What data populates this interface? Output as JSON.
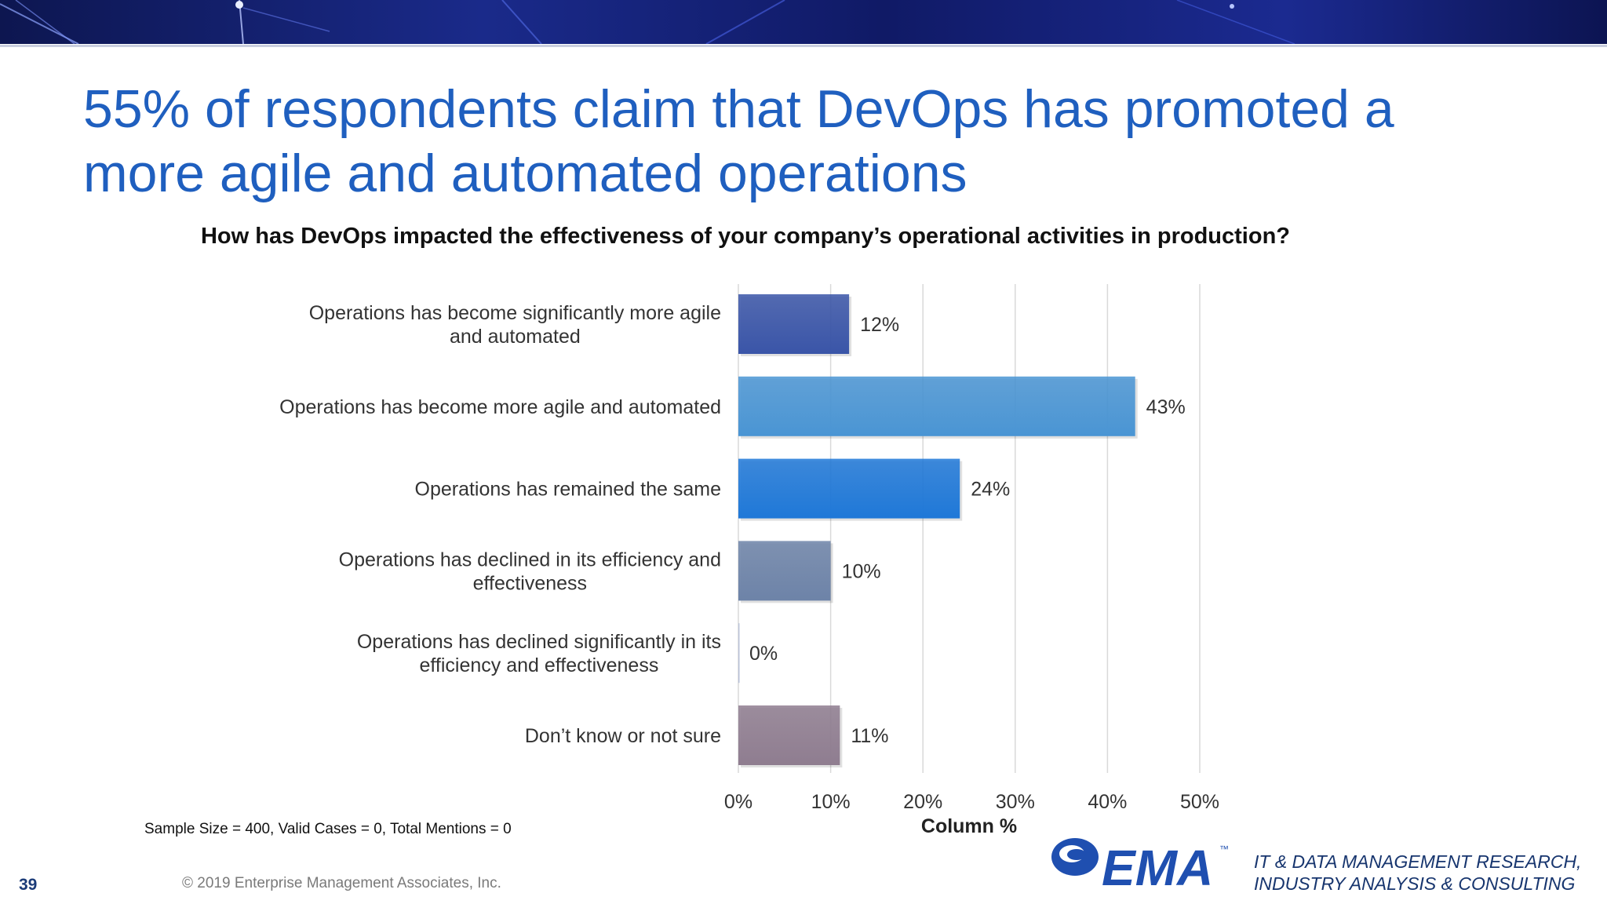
{
  "slide": {
    "title": "55% of respondents claim that DevOps has promoted a more agile and automated operations",
    "question": "How has DevOps impacted the effectiveness of your company’s operational activities in production?",
    "sample_note": "Sample Size = 400, Valid Cases = 0, Total Mentions = 0",
    "slide_number": "39",
    "copyright": "© 2019 Enterprise Management Associates, Inc.",
    "logo_text": "EMA",
    "logo_tm": "™",
    "tagline_line1": "IT & DATA MANAGEMENT RESEARCH,",
    "tagline_line2": "INDUSTRY ANALYSIS & CONSULTING"
  },
  "chart_data": {
    "type": "bar",
    "orientation": "horizontal",
    "categories": [
      [
        "Operations has become significantly more agile",
        "and automated"
      ],
      [
        "Operations has become more agile and automated"
      ],
      [
        "Operations has remained the same"
      ],
      [
        "Operations has declined in its efficiency and",
        "effectiveness"
      ],
      [
        "Operations has declined significantly in its",
        "efficiency and effectiveness"
      ],
      [
        "Don’t know or not sure"
      ]
    ],
    "values": [
      12,
      43,
      24,
      10,
      0,
      11
    ],
    "data_labels": [
      "12%",
      "43%",
      "24%",
      "10%",
      "0%",
      "11%"
    ],
    "bar_colors": [
      "#3a55a8",
      "#4a95d4",
      "#1f78d8",
      "#6d83a8",
      "#b7c0d8",
      "#8f7d90"
    ],
    "xlabel": "Column %",
    "xlim": [
      0,
      50
    ],
    "xticks": [
      0,
      10,
      20,
      30,
      40,
      50
    ],
    "xtick_labels": [
      "0%",
      "10%",
      "20%",
      "30%",
      "40%",
      "50%"
    ],
    "grid": "vertical"
  },
  "colors": {
    "title": "#1f5fbf",
    "banner": "#101a66",
    "logo": "#1f4fb0"
  }
}
